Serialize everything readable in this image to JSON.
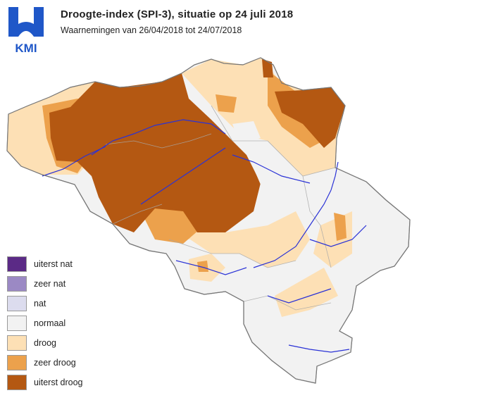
{
  "header": {
    "logo_text": "KMI",
    "title": "Droogte-index (SPI-3), situatie op 24 juli 2018",
    "subtitle": "Waarnemingen van 26/04/2018 tot 24/07/2018"
  },
  "colors": {
    "uiterst_nat": "#5b2a86",
    "zeer_nat": "#9b89c4",
    "nat": "#dcdcee",
    "normaal": "#f2f2f2",
    "droog": "#fde0b5",
    "zeer_droog": "#eca14c",
    "uiterst_droog": "#b45812",
    "river": "#2a32d6",
    "border": "#9a9a9a",
    "logo_blue": "#1f57c8"
  },
  "legend": {
    "items": [
      {
        "label": "uiterst nat",
        "color": "#5b2a86"
      },
      {
        "label": "zeer nat",
        "color": "#9b89c4"
      },
      {
        "label": "nat",
        "color": "#dcdcee"
      },
      {
        "label": "normaal",
        "color": "#f2f2f2"
      },
      {
        "label": "droog",
        "color": "#fde0b5"
      },
      {
        "label": "zeer droog",
        "color": "#eca14c"
      },
      {
        "label": "uiterst droog",
        "color": "#b45812"
      }
    ]
  }
}
